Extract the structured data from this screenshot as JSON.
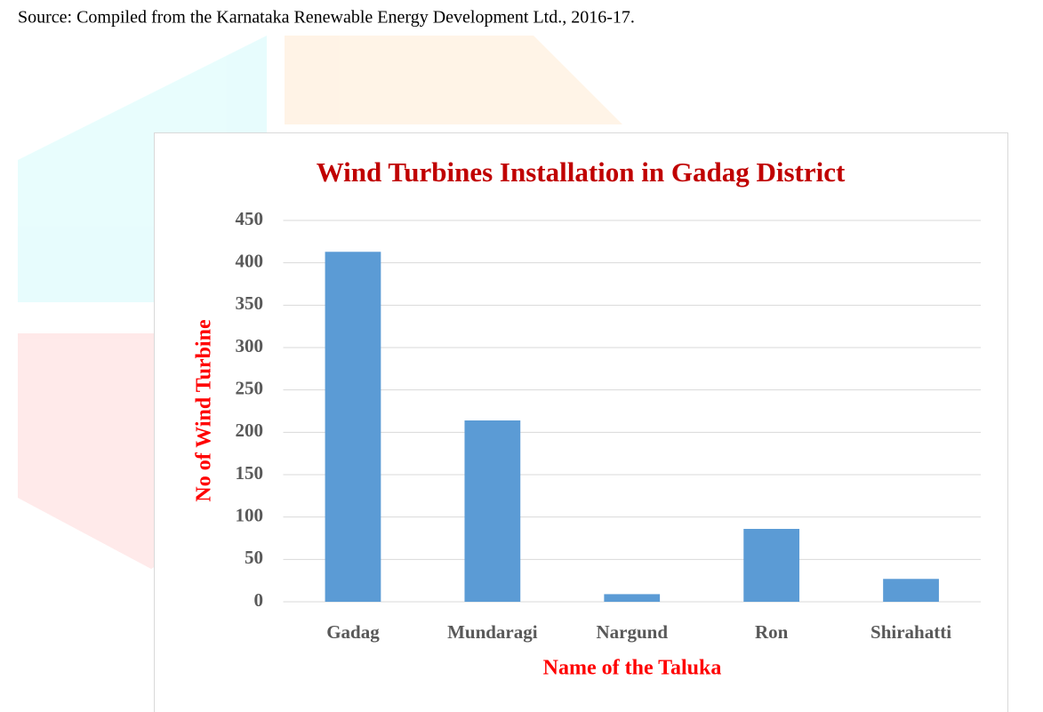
{
  "source": "Source: Compiled from the Karnataka Renewable Energy Development Ltd., 2016-17.",
  "chart_data": {
    "type": "bar",
    "title": "Wind Turbines Installation in Gadag District",
    "x_label": "Name of the Taluka",
    "y_label": "No of Wind Turbine",
    "categories": [
      "Gadag",
      "Mundaragi",
      "Nargund",
      "Ron",
      "Shirahatti"
    ],
    "values": [
      413,
      214,
      9,
      86,
      27
    ],
    "color": "#5b9bd5",
    "ylim": [
      0,
      450
    ],
    "yticks": [
      0,
      50,
      100,
      150,
      200,
      250,
      300,
      350,
      400,
      450
    ],
    "grid": true
  }
}
